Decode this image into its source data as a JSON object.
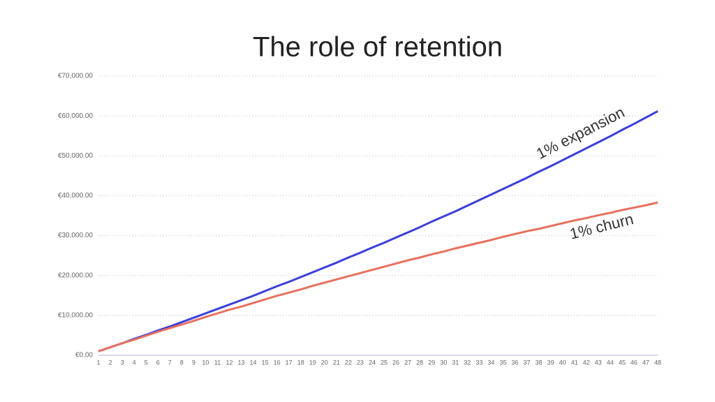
{
  "chart_data": {
    "type": "line",
    "title": "The role of retention",
    "x": [
      1,
      2,
      3,
      4,
      5,
      6,
      7,
      8,
      9,
      10,
      11,
      12,
      13,
      14,
      15,
      16,
      17,
      18,
      19,
      20,
      21,
      22,
      23,
      24,
      25,
      26,
      27,
      28,
      29,
      30,
      31,
      32,
      33,
      34,
      35,
      36,
      37,
      38,
      39,
      40,
      41,
      42,
      43,
      44,
      45,
      46,
      47,
      48
    ],
    "xlim": [
      1,
      48
    ],
    "ylim": [
      0,
      70000
    ],
    "yticks": [
      {
        "value": 0,
        "label": "€0.00"
      },
      {
        "value": 10000,
        "label": "€10,000.00"
      },
      {
        "value": 20000,
        "label": "€20,000.00"
      },
      {
        "value": 30000,
        "label": "€30,000.00"
      },
      {
        "value": 40000,
        "label": "€40,000.00"
      },
      {
        "value": 50000,
        "label": "€50,000.00"
      },
      {
        "value": 60000,
        "label": "€60,000.00"
      },
      {
        "value": 70000,
        "label": "€70,000.00"
      }
    ],
    "grid": true,
    "series": [
      {
        "name": "1% expansion",
        "color": "#3a3fd9",
        "values": [
          1000,
          2000,
          3000,
          4100,
          5100,
          6200,
          7200,
          8300,
          9400,
          10500,
          11600,
          12700,
          13800,
          14900,
          16100,
          17300,
          18400,
          19600,
          20800,
          22000,
          23200,
          24500,
          25700,
          27000,
          28200,
          29500,
          30800,
          32100,
          33500,
          34800,
          36100,
          37500,
          38900,
          40300,
          41700,
          43100,
          44500,
          46000,
          47400,
          48900,
          50400,
          51900,
          53400,
          54900,
          56500,
          58000,
          59600,
          61200
        ]
      },
      {
        "name": "1% churn",
        "color": "#e8705f",
        "values": [
          1000,
          2000,
          3000,
          3900,
          4900,
          5900,
          6800,
          7700,
          8600,
          9600,
          10500,
          11400,
          12200,
          13100,
          14000,
          14900,
          15700,
          16500,
          17400,
          18200,
          19000,
          19800,
          20600,
          21400,
          22200,
          23000,
          23800,
          24500,
          25300,
          26000,
          26800,
          27500,
          28200,
          28900,
          29700,
          30400,
          31100,
          31700,
          32400,
          33100,
          33800,
          34400,
          35100,
          35700,
          36400,
          37000,
          37600,
          38300
        ]
      }
    ]
  }
}
